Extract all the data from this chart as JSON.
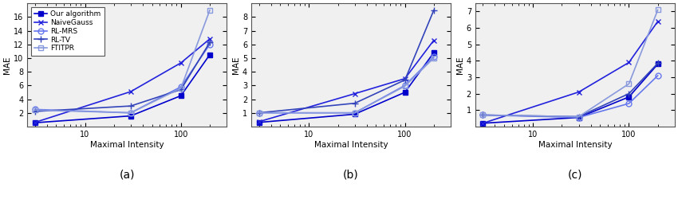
{
  "x": [
    3,
    30,
    100,
    200
  ],
  "algorithms": [
    "Our algorithm",
    "NaiveGauss",
    "RL-MRS",
    "RL-TV",
    "FTITPR"
  ],
  "subplot_a": {
    "title": "(a)",
    "ylabel": "MAE",
    "xlabel": "Maximal Intensity",
    "ylim": [
      0,
      18
    ],
    "yticks": [
      2,
      4,
      6,
      8,
      10,
      12,
      14,
      16
    ],
    "xlim": [
      2.5,
      300
    ],
    "data": {
      "Our algorithm": [
        0.55,
        1.55,
        4.5,
        10.5
      ],
      "NaiveGauss": [
        0.6,
        5.1,
        9.3,
        12.8
      ],
      "RL-MRS": [
        2.5,
        2.0,
        5.8,
        12.0
      ],
      "RL-TV": [
        2.2,
        3.0,
        5.4,
        12.3
      ],
      "FTITPR": [
        2.4,
        2.0,
        5.6,
        17.0
      ]
    }
  },
  "subplot_b": {
    "title": "(b)",
    "ylabel": "MAE",
    "xlabel": "Maximal Intensity",
    "ylim": [
      0,
      9
    ],
    "yticks": [
      1,
      2,
      3,
      4,
      5,
      6,
      7,
      8
    ],
    "xlim": [
      2.5,
      300
    ],
    "data": {
      "Our algorithm": [
        0.3,
        0.9,
        2.5,
        5.4
      ],
      "NaiveGauss": [
        0.35,
        2.4,
        3.5,
        6.3
      ],
      "RL-MRS": [
        1.0,
        1.0,
        3.0,
        5.1
      ],
      "RL-TV": [
        1.0,
        1.7,
        3.4,
        8.5
      ],
      "FTITPR": [
        1.0,
        1.0,
        2.95,
        5.0
      ]
    }
  },
  "subplot_c": {
    "title": "(c)",
    "ylabel": "MAE",
    "xlabel": "Maximal Intensity",
    "ylim": [
      0,
      7.5
    ],
    "yticks": [
      1,
      2,
      3,
      4,
      5,
      6,
      7
    ],
    "xlim": [
      2.5,
      300
    ],
    "data": {
      "Our algorithm": [
        0.2,
        0.55,
        1.8,
        3.8
      ],
      "NaiveGauss": [
        0.2,
        2.1,
        3.9,
        6.4
      ],
      "RL-MRS": [
        0.7,
        0.55,
        1.4,
        3.1
      ],
      "RL-TV": [
        0.7,
        0.6,
        2.0,
        3.85
      ],
      "FTITPR": [
        0.7,
        0.6,
        2.6,
        7.1
      ]
    }
  },
  "algo_styles": {
    "Our algorithm": {
      "color": "#0000cc",
      "marker": "s",
      "markersize": 4.5,
      "filled": true,
      "lw": 1.2
    },
    "NaiveGauss": {
      "color": "#2222dd",
      "marker": "x",
      "markersize": 5.0,
      "filled": false,
      "lw": 1.2
    },
    "RL-MRS": {
      "color": "#6677ee",
      "marker": "o",
      "markersize": 5.0,
      "filled": false,
      "lw": 1.2
    },
    "RL-TV": {
      "color": "#3344bb",
      "marker": "+",
      "markersize": 6.0,
      "filled": false,
      "lw": 1.2
    },
    "FTITPR": {
      "color": "#8899dd",
      "marker": "s",
      "markersize": 4.5,
      "filled": false,
      "lw": 1.2
    }
  },
  "legend_fontsize": 6.5,
  "axis_fontsize": 7.5,
  "tick_fontsize": 7,
  "title_fontsize": 10,
  "bg_color": "#f0f0f0"
}
